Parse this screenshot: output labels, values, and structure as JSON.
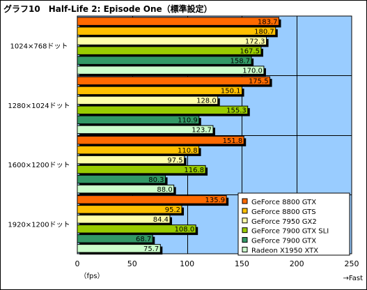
{
  "chart_data": {
    "type": "bar",
    "orientation": "horizontal",
    "title": "グラフ10　Half-Life 2: Episode One（標準設定）",
    "categories": [
      "1024×768ドット",
      "1280×1024ドット",
      "1600×1200ドット",
      "1920×1200ドット"
    ],
    "series": [
      {
        "name": "GeForce 8800 GTX",
        "color": "#ff6a00",
        "values": [
          183.7,
          175.5,
          151.8,
          135.9
        ]
      },
      {
        "name": "GeForce 8800 GTS",
        "color": "#ffc000",
        "values": [
          180.7,
          150.1,
          110.8,
          95.2
        ]
      },
      {
        "name": "GeForce 7950 GX2",
        "color": "#ffffa8",
        "values": [
          172.3,
          128.0,
          97.5,
          84.4
        ]
      },
      {
        "name": "GeForce 7900 GTX SLI",
        "color": "#99cc00",
        "values": [
          167.5,
          155.3,
          116.8,
          108.0
        ]
      },
      {
        "name": "GeForce 7900 GTX",
        "color": "#339966",
        "values": [
          158.7,
          110.9,
          80.3,
          68.7
        ]
      },
      {
        "name": "Radeon X1950 XTX",
        "color": "#ccffcc",
        "values": [
          170.0,
          123.7,
          88.0,
          75.7
        ]
      }
    ],
    "value_labels": [
      [
        "183.7",
        "180.7",
        "172.3",
        "167.5",
        "158.7",
        "170.0"
      ],
      [
        "175.5",
        "150.1",
        "128.0",
        "155.3",
        "110.9",
        "123.7"
      ],
      [
        "151.8",
        "110.8",
        "97.5",
        "116.8",
        "80.3",
        "88.0"
      ],
      [
        "135.9",
        "95.2",
        "84.4",
        "108.0",
        "68.7",
        "75.7"
      ]
    ],
    "xlim": [
      0,
      250
    ],
    "xticks": [
      0,
      50,
      100,
      150,
      200,
      250
    ],
    "xlabel": "（fps）",
    "direction_label": "→Fast",
    "grid": true,
    "legend_position": "bottom-right",
    "plot_background": "#99ccff"
  }
}
